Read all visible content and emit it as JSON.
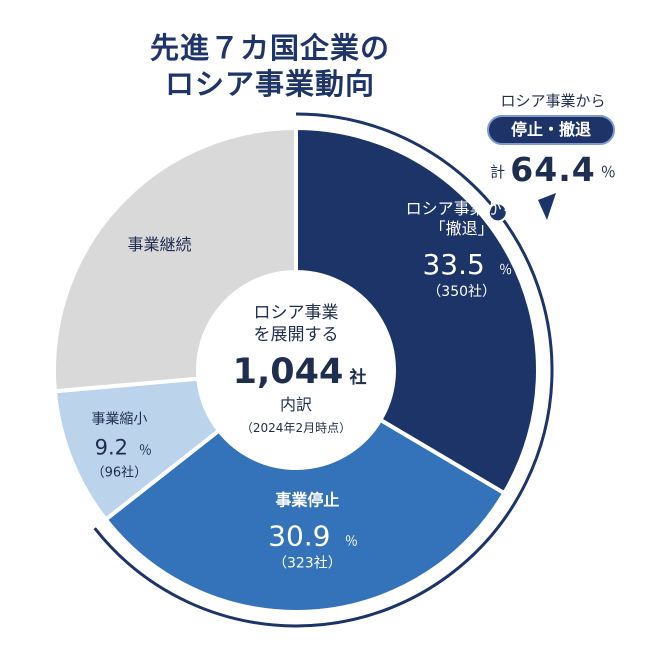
{
  "title": {
    "line1": "先進７カ国企業の",
    "line2": "ロシア事業動向"
  },
  "callout": {
    "top": "ロシア事業から",
    "pill": "停止・撤退",
    "total_prefix": "計",
    "total_value": "64.4",
    "total_unit": "％"
  },
  "center": {
    "line1": "ロシア事業",
    "line2": "を展開する",
    "count": "1,044",
    "count_unit": "社",
    "line3": "内訳",
    "note": "（2024年2月時点）"
  },
  "colors": {
    "withdraw": "#1c3467",
    "suspend": "#3473b9",
    "shrink": "#bcd3ec",
    "continue": "#d9d9d9",
    "title": "#1f3469"
  },
  "chart_data": {
    "type": "pie",
    "title": "先進７カ国企業の ロシア事業動向",
    "total": 1044,
    "total_unit": "社",
    "segments": [
      {
        "label": "ロシア事業から「撤退」",
        "label_lines": [
          "ロシア事業から",
          "「撤退」"
        ],
        "percent": 33.5,
        "percent_text": "33.5",
        "count": 350,
        "count_text": "（350社）",
        "color": "#1c3467",
        "text_color": "#ffffff"
      },
      {
        "label": "事業停止",
        "label_lines": [
          "事業停止"
        ],
        "percent": 30.9,
        "percent_text": "30.9",
        "count": 323,
        "count_text": "（323社）",
        "color": "#3473b9",
        "text_color": "#ffffff"
      },
      {
        "label": "事業縮小",
        "label_lines": [
          "事業縮小"
        ],
        "percent": 9.2,
        "percent_text": "9.2",
        "count": 96,
        "count_text": "（96社）",
        "color": "#bcd3ec",
        "text_color": "#1f2d4f"
      },
      {
        "label": "事業継続",
        "label_lines": [
          "事業継続"
        ],
        "percent": 26.4,
        "percent_text": "",
        "count": null,
        "count_text": "",
        "color": "#d9d9d9",
        "text_color": "#1f2d4f"
      }
    ],
    "percent_unit": "％",
    "highlight": {
      "label": "停止・撤退",
      "percent": 64.4
    }
  }
}
